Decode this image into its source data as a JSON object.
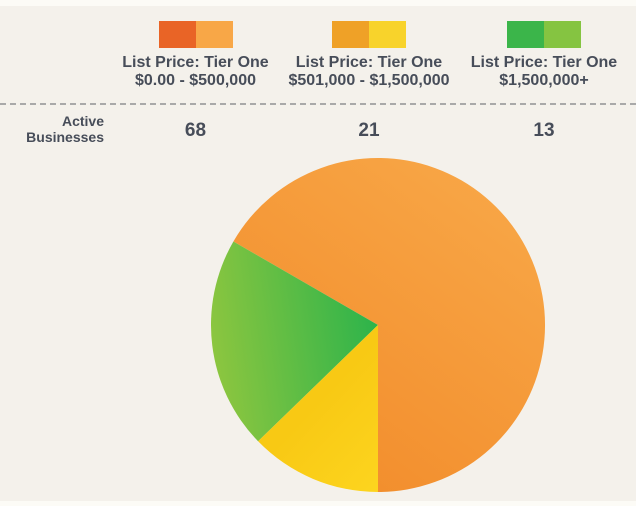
{
  "background": "#F4F1EB",
  "edge_strip_color": "#FCFBF6",
  "text_color": "#474D59",
  "separator": {
    "style": "dashed",
    "color": "#A9A9A9"
  },
  "legend": {
    "position": "top",
    "items": [
      {
        "label": "List Price: Tier One",
        "range": "$0.00 - $500,000",
        "swatch_left": "#E96426",
        "swatch_right": "#F8A747"
      },
      {
        "label": "List Price: Tier One",
        "range": "$501,000 - $1,500,000",
        "swatch_left": "#EFA127",
        "swatch_right": "#F8D32B"
      },
      {
        "label": "List Price: Tier One",
        "range": "$1,500,000+",
        "swatch_left": "#3BB54A",
        "swatch_right": "#85C441"
      }
    ]
  },
  "stats_row": {
    "label_line1": "Active",
    "label_line2": "Businesses",
    "values": [
      "68",
      "21",
      "13"
    ]
  },
  "chart_data": {
    "type": "pie",
    "title": "",
    "legend_position": "top",
    "unit": "active businesses",
    "categories": [
      "List Price: Tier One $0.00 - $500,000",
      "List Price: Tier One $501,000 - $1,500,000",
      "List Price: Tier One $1,500,000+"
    ],
    "values": [
      68,
      21,
      13
    ],
    "total": 102,
    "start_angle_deg": 180,
    "direction": "counterclockwise",
    "slices": [
      {
        "label": "List Price: Tier One $0.00 - $500,000",
        "value": 68,
        "gradient": [
          "#F8A747",
          "#F28D2C"
        ]
      },
      {
        "label": "List Price: Tier One $501,000 - $1,500,000",
        "value": 21,
        "gradient": [
          "#8DC63F",
          "#2BB34B"
        ]
      },
      {
        "label": "List Price: Tier One $1,500,000+",
        "value": 13,
        "gradient": [
          "#F8C914",
          "#FDD51F"
        ]
      }
    ]
  }
}
